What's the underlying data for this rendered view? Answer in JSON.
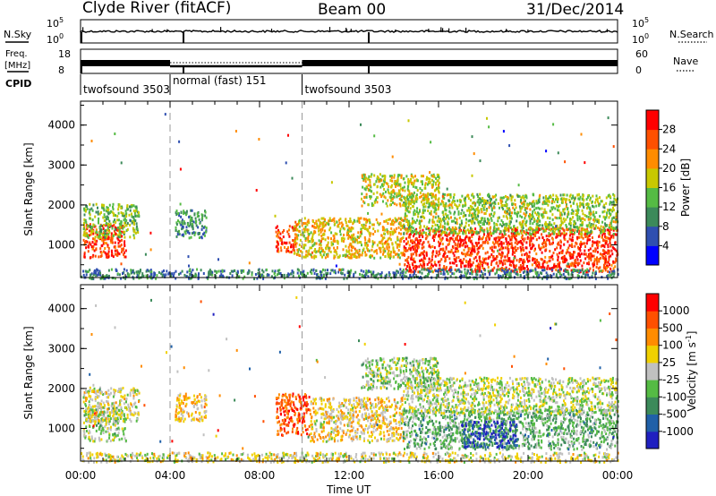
{
  "header": {
    "station": "Clyde River (fitACF)",
    "beam": "Beam 00",
    "date": "31/Dec/2014"
  },
  "side_labels": {
    "nsky": "N.Sky",
    "nsearch": "N.Search",
    "freq_line1": "Freq.",
    "freq_line2": "[MHz]",
    "nave": "Nave",
    "cpid": "CPID"
  },
  "strip_ticks": {
    "noise_left": [
      "10^5",
      "10^0"
    ],
    "noise_right": [
      "10^5",
      "10^0"
    ],
    "freq_left": [
      "18",
      "8"
    ],
    "nave_right": [
      "60",
      "0"
    ]
  },
  "cpid_segments": [
    {
      "label": "twofsound 3503",
      "start_hour": 0
    },
    {
      "label": "normal (fast) 151",
      "start_hour": 4.0
    },
    {
      "label": "twofsound 3503",
      "start_hour": 9.9
    }
  ],
  "chart_data": [
    {
      "type": "heatmap",
      "title": "Power",
      "ylabel": "Slant Range [km]",
      "xlabel": "",
      "xlim_hours": [
        0,
        24
      ],
      "ylim": [
        180,
        4600
      ],
      "y_ticks": [
        "1000",
        "2000",
        "3000",
        "4000"
      ],
      "colorbar_label": "Power [dB]",
      "colorbar_ticks": [
        "4",
        "8",
        "12",
        "16",
        "20",
        "24",
        "28"
      ],
      "colorbar_colors": [
        "#0000ff",
        "#2f4fb0",
        "#3c8a5a",
        "#55bb44",
        "#c8c800",
        "#ff8c00",
        "#ff5000",
        "#ff0000"
      ],
      "scatter_regions": [
        {
          "x": [
            0.1,
            2.0
          ],
          "y": [
            700,
            1550
          ],
          "level": 0.92
        },
        {
          "x": [
            0.1,
            2.6
          ],
          "y": [
            1200,
            2050
          ],
          "level": 0.45
        },
        {
          "x": [
            4.2,
            5.6
          ],
          "y": [
            1200,
            1900
          ],
          "level": 0.3
        },
        {
          "x": [
            8.7,
            9.6
          ],
          "y": [
            850,
            1500
          ],
          "level": 0.88
        },
        {
          "x": [
            9.5,
            14.4
          ],
          "y": [
            700,
            1700
          ],
          "level": 0.62
        },
        {
          "x": [
            14.4,
            24.0
          ],
          "y": [
            350,
            1450
          ],
          "level": 0.93
        },
        {
          "x": [
            14.4,
            24.0
          ],
          "y": [
            1300,
            2300
          ],
          "level": 0.5
        },
        {
          "x": [
            12.5,
            16.0
          ],
          "y": [
            2000,
            2800
          ],
          "level": 0.55
        },
        {
          "x": [
            0.0,
            24.0
          ],
          "y": [
            180,
            420
          ],
          "level": 0.25
        }
      ]
    },
    {
      "type": "heatmap",
      "title": "Velocity",
      "ylabel": "Slant Range [km]",
      "xlabel": "Time UT",
      "xlim_hours": [
        0,
        24
      ],
      "ylim": [
        180,
        4600
      ],
      "x_ticks": [
        "00:00",
        "04:00",
        "08:00",
        "12:00",
        "16:00",
        "20:00",
        "00:00"
      ],
      "y_ticks": [
        "1000",
        "2000",
        "3000",
        "4000"
      ],
      "colorbar_label": "Velocity [m s^-1]",
      "colorbar_ticks": [
        "1000",
        "500",
        "100",
        "25",
        "-25",
        "-100",
        "-500",
        "-1000"
      ],
      "colorbar_colors": [
        "#2020c0",
        "#2060a8",
        "#3c8a5a",
        "#55bb44",
        "#c0c0c0",
        "#f0d000",
        "#ff8c00",
        "#ff5000",
        "#ff0000"
      ],
      "scatter_regions": [
        {
          "x": [
            0.1,
            2.0
          ],
          "y": [
            700,
            1550
          ],
          "level": 0.45
        },
        {
          "x": [
            0.1,
            2.6
          ],
          "y": [
            1200,
            2050
          ],
          "level": 0.55
        },
        {
          "x": [
            4.2,
            5.6
          ],
          "y": [
            1200,
            1900
          ],
          "level": 0.65
        },
        {
          "x": [
            8.7,
            10.2
          ],
          "y": [
            850,
            1900
          ],
          "level": 0.88
        },
        {
          "x": [
            10.2,
            14.4
          ],
          "y": [
            700,
            1800
          ],
          "level": 0.6
        },
        {
          "x": [
            14.4,
            24.0
          ],
          "y": [
            500,
            1500
          ],
          "level": 0.35
        },
        {
          "x": [
            17.0,
            19.5
          ],
          "y": [
            550,
            1200
          ],
          "level": 0.08
        },
        {
          "x": [
            14.4,
            24.0
          ],
          "y": [
            1400,
            2300
          ],
          "level": 0.5
        },
        {
          "x": [
            12.5,
            16.0
          ],
          "y": [
            2000,
            2800
          ],
          "level": 0.45
        },
        {
          "x": [
            0.0,
            24.0
          ],
          "y": [
            180,
            420
          ],
          "level": 0.55
        }
      ]
    }
  ]
}
